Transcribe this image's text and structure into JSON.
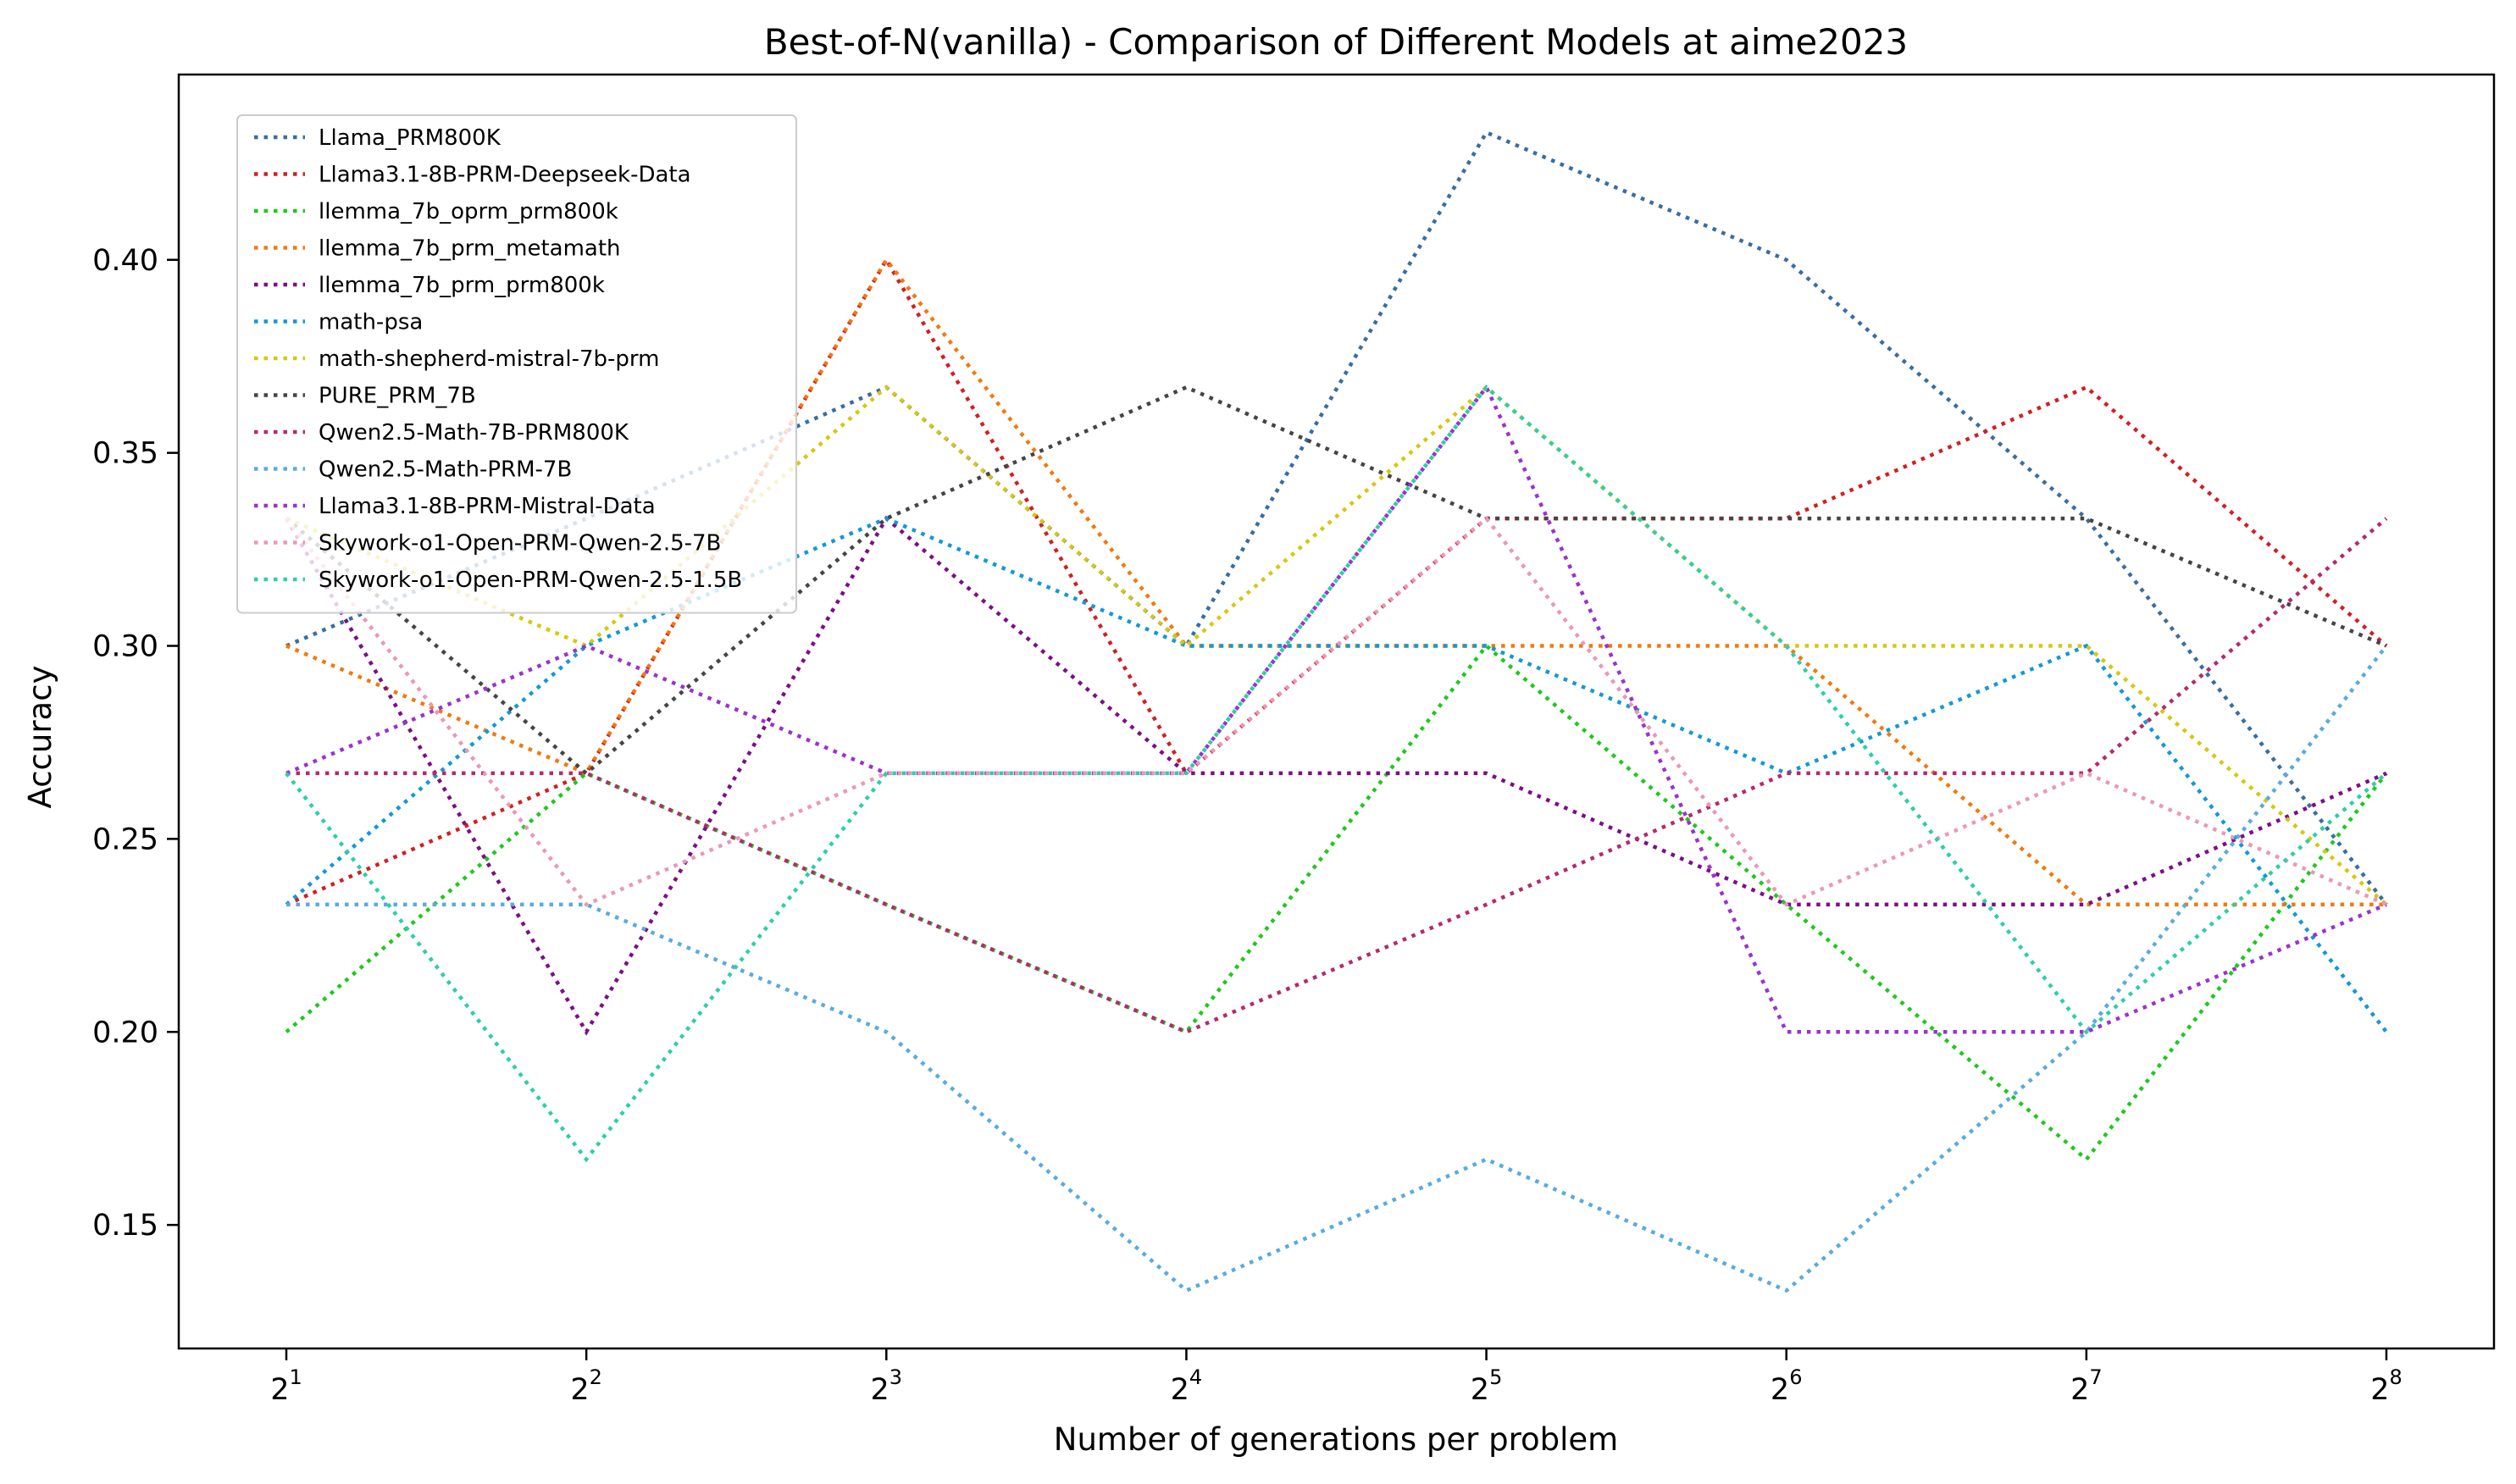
{
  "chart_data": {
    "type": "line",
    "title": "Best-of-N(vanilla) - Comparison of Different Models at aime2023",
    "xlabel": "Number of generations per problem",
    "ylabel": "Accuracy",
    "x": [
      2,
      4,
      8,
      16,
      32,
      64,
      128,
      256
    ],
    "x_tick_labels": [
      {
        "base": "2",
        "exp": "1"
      },
      {
        "base": "2",
        "exp": "2"
      },
      {
        "base": "2",
        "exp": "3"
      },
      {
        "base": "2",
        "exp": "4"
      },
      {
        "base": "2",
        "exp": "5"
      },
      {
        "base": "2",
        "exp": "6"
      },
      {
        "base": "2",
        "exp": "7"
      },
      {
        "base": "2",
        "exp": "8"
      }
    ],
    "x_scale": "log2",
    "ylim": [
      0.118,
      0.448
    ],
    "y_ticks": [
      0.15,
      0.2,
      0.25,
      0.3,
      0.35,
      0.4
    ],
    "y_tick_labels": [
      "0.15",
      "0.20",
      "0.25",
      "0.30",
      "0.35",
      "0.40"
    ],
    "grid": false,
    "legend_position": "top-left",
    "line_style": "dotted",
    "series": [
      {
        "name": "Llama_PRM800K",
        "color": "#3a6d9f",
        "values": [
          0.3,
          0.333,
          0.367,
          0.3,
          0.433,
          0.4,
          0.333,
          0.233
        ]
      },
      {
        "name": "Llama3.1-8B-PRM-Deepseek-Data",
        "color": "#d11f24",
        "values": [
          0.233,
          0.267,
          0.4,
          0.267,
          0.333,
          0.333,
          0.367,
          0.3
        ]
      },
      {
        "name": "llemma_7b_oprm_prm800k",
        "color": "#1fc81f",
        "values": [
          0.2,
          0.267,
          0.233,
          0.2,
          0.3,
          0.233,
          0.167,
          0.267
        ]
      },
      {
        "name": "llemma_7b_prm_metamath",
        "color": "#f07a0e",
        "values": [
          0.3,
          0.267,
          0.4,
          0.3,
          0.3,
          0.3,
          0.233,
          0.233
        ]
      },
      {
        "name": "llemma_7b_prm_prm800k",
        "color": "#7b0f86",
        "values": [
          0.333,
          0.2,
          0.333,
          0.267,
          0.267,
          0.233,
          0.233,
          0.267
        ]
      },
      {
        "name": "math-psa",
        "color": "#1399d4",
        "values": [
          0.233,
          0.3,
          0.333,
          0.3,
          0.3,
          0.267,
          0.3,
          0.2
        ]
      },
      {
        "name": "math-shepherd-mistral-7b-prm",
        "color": "#d6c80e",
        "values": [
          0.333,
          0.3,
          0.367,
          0.3,
          0.367,
          0.3,
          0.3,
          0.233
        ]
      },
      {
        "name": "PURE_PRM_7B",
        "color": "#454545",
        "values": [
          0.333,
          0.267,
          0.333,
          0.367,
          0.333,
          0.333,
          0.333,
          0.3
        ]
      },
      {
        "name": "Qwen2.5-Math-7B-PRM800K",
        "color": "#b32a6e",
        "values": [
          0.267,
          0.267,
          0.233,
          0.2,
          0.233,
          0.267,
          0.267,
          0.333
        ]
      },
      {
        "name": "Qwen2.5-Math-PRM-7B",
        "color": "#5aabdb",
        "values": [
          0.233,
          0.233,
          0.2,
          0.133,
          0.167,
          0.133,
          0.2,
          0.3
        ]
      },
      {
        "name": "Llama3.1-8B-PRM-Mistral-Data",
        "color": "#9933cf",
        "values": [
          0.267,
          0.3,
          0.267,
          0.267,
          0.367,
          0.2,
          0.2,
          0.233
        ]
      },
      {
        "name": "Skywork-o1-Open-PRM-Qwen-2.5-7B",
        "color": "#e899b8",
        "values": [
          0.333,
          0.233,
          0.267,
          0.267,
          0.333,
          0.233,
          0.267,
          0.233
        ]
      },
      {
        "name": "Skywork-o1-Open-PRM-Qwen-2.5-1.5B",
        "color": "#2ccfa7",
        "values": [
          0.267,
          0.167,
          0.267,
          0.267,
          0.367,
          0.3,
          0.2,
          0.267
        ]
      }
    ]
  }
}
